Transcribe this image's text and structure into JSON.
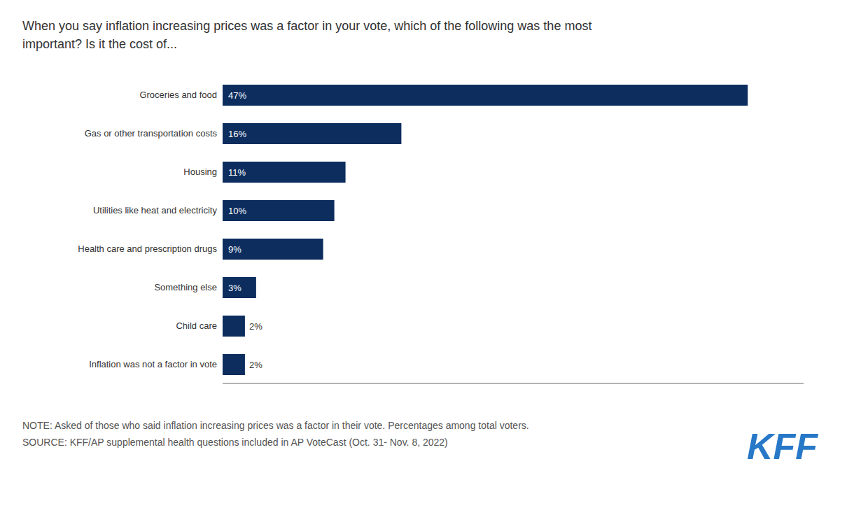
{
  "chart_data": {
    "type": "bar",
    "orientation": "horizontal",
    "title": "When you say inflation increasing prices was a factor in your vote, which of the following was the most important? Is it the cost of...",
    "categories": [
      "Groceries and food",
      "Gas or other transportation costs",
      "Housing",
      "Utilities like heat and electricity",
      "Health care and prescription drugs",
      "Something else",
      "Child care",
      "Inflation was not a factor in vote"
    ],
    "values": [
      47,
      16,
      11,
      10,
      9,
      3,
      2,
      2
    ],
    "value_labels": [
      "47%",
      "16%",
      "11%",
      "10%",
      "9%",
      "3%",
      "2%",
      "2%"
    ],
    "data_labels": true,
    "color": "#0d2d5e",
    "xlim": [
      0,
      52
    ],
    "grid": false,
    "tick_labels": "y",
    "annotations": [
      "NOTE: Asked of those who said inflation increasing prices was a factor in their vote. Percentages among total voters.",
      "SOURCE: KFF/AP supplemental health questions included in AP VoteCast (Oct. 31- Nov. 8, 2022)",
      "KFF"
    ]
  }
}
